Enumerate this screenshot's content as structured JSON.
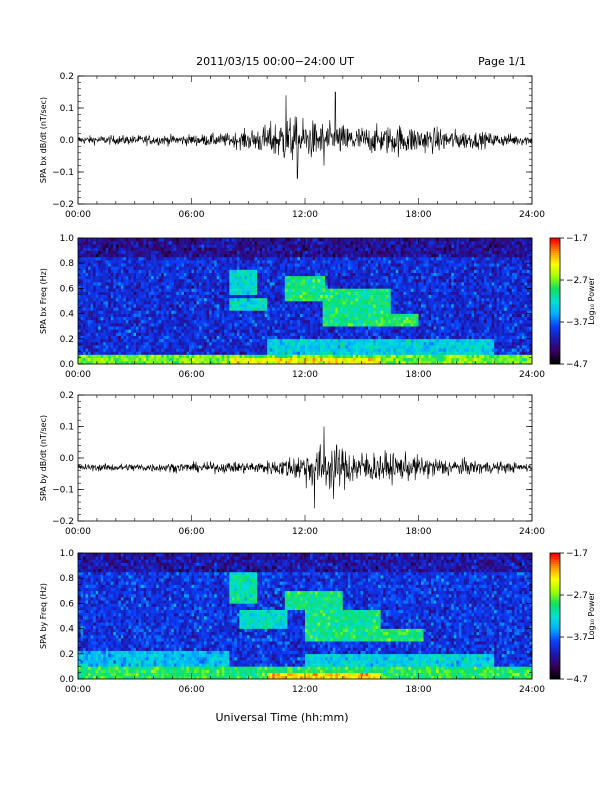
{
  "header": {
    "title": "2011/03/15  00:00−24:00 UT",
    "page": "Page 1/1"
  },
  "footer": {
    "xlabel": "Universal Time (hh:mm)"
  },
  "colorbar": {
    "label": "Log₁₀ Power",
    "ticks": [
      "−1.7",
      "−2.7",
      "−3.7",
      "−4.7"
    ],
    "tick_values": [
      -1.7,
      -2.7,
      -3.7,
      -4.7
    ],
    "range": [
      -4.7,
      -1.7
    ],
    "palette": [
      "#000000",
      "#3a0060",
      "#1a1ab0",
      "#0a40ff",
      "#00b0ff",
      "#00e0d0",
      "#10e060",
      "#a0ff00",
      "#ffff00",
      "#ff9000",
      "#ff0000"
    ]
  },
  "chart_data": [
    {
      "type": "line",
      "ylabel": "SPA bx dB/dt (nT/sec)",
      "x_ticks": [
        "00:00",
        "06:00",
        "12:00",
        "18:00",
        "24:00"
      ],
      "xlim": [
        0,
        24
      ],
      "ylim": [
        -0.2,
        0.2
      ],
      "y_ticks": [
        "0.2",
        "0.1",
        "0.0",
        "−0.1",
        "−0.2"
      ],
      "y_tick_values": [
        0.2,
        0.1,
        0.0,
        -0.1,
        -0.2
      ],
      "baseline": 0.0,
      "envelope": [
        [
          0,
          0.012
        ],
        [
          3,
          0.014
        ],
        [
          6,
          0.016
        ],
        [
          8,
          0.02
        ],
        [
          9,
          0.03
        ],
        [
          10,
          0.045
        ],
        [
          11,
          0.07
        ],
        [
          12,
          0.06
        ],
        [
          13,
          0.05
        ],
        [
          14,
          0.045
        ],
        [
          15,
          0.04
        ],
        [
          16,
          0.04
        ],
        [
          17,
          0.045
        ],
        [
          18,
          0.04
        ],
        [
          20,
          0.03
        ],
        [
          22,
          0.02
        ],
        [
          24,
          0.015
        ]
      ],
      "peaks": [
        [
          11.0,
          0.14
        ],
        [
          11.6,
          -0.12
        ],
        [
          13.6,
          0.15
        ],
        [
          13.0,
          -0.08
        ]
      ],
      "line_color": "#000000"
    },
    {
      "type": "heatmap",
      "ylabel": "SPA bx Freq (Hz)",
      "x_ticks": [
        "00:00",
        "06:00",
        "12:00",
        "18:00",
        "24:00"
      ],
      "xlim": [
        0,
        24
      ],
      "ylim": [
        0.0,
        1.0
      ],
      "y_ticks": [
        "1.0",
        "0.8",
        "0.6",
        "0.4",
        "0.2",
        "0.0"
      ],
      "y_tick_values": [
        1.0,
        0.8,
        0.6,
        0.4,
        0.2,
        0.0
      ],
      "background_log_power": -3.95,
      "features": [
        {
          "t0": 0,
          "t1": 24,
          "f0": 0.0,
          "f1": 0.08,
          "level": -2.7
        },
        {
          "t0": 8,
          "t1": 16,
          "f0": 0.0,
          "f1": 0.05,
          "level": -2.3
        },
        {
          "t0": 8,
          "t1": 9.5,
          "f0": 0.55,
          "f1": 0.75,
          "level": -3.2
        },
        {
          "t0": 8,
          "t1": 10,
          "f0": 0.42,
          "f1": 0.52,
          "level": -3.2
        },
        {
          "t0": 11,
          "t1": 13,
          "f0": 0.5,
          "f1": 0.7,
          "level": -3.0
        },
        {
          "t0": 13,
          "t1": 16.5,
          "f0": 0.3,
          "f1": 0.6,
          "level": -3.0
        },
        {
          "t0": 16,
          "t1": 18,
          "f0": 0.3,
          "f1": 0.4,
          "level": -2.9
        },
        {
          "t0": 10,
          "t1": 22,
          "f0": 0.05,
          "f1": 0.2,
          "level": -3.3
        }
      ]
    },
    {
      "type": "line",
      "ylabel": "SPA by dB/dt (nT/sec)",
      "x_ticks": [
        "00:00",
        "06:00",
        "12:00",
        "18:00",
        "24:00"
      ],
      "xlim": [
        0,
        24
      ],
      "ylim": [
        -0.2,
        0.2
      ],
      "y_ticks": [
        "0.2",
        "0.1",
        "0.0",
        "−0.1",
        "−0.2"
      ],
      "y_tick_values": [
        0.2,
        0.1,
        0.0,
        -0.1,
        -0.2
      ],
      "baseline": -0.03,
      "envelope": [
        [
          0,
          0.01
        ],
        [
          3,
          0.012
        ],
        [
          6,
          0.014
        ],
        [
          8,
          0.016
        ],
        [
          10,
          0.02
        ],
        [
          11,
          0.03
        ],
        [
          12,
          0.05
        ],
        [
          13,
          0.07
        ],
        [
          14,
          0.06
        ],
        [
          15,
          0.05
        ],
        [
          16,
          0.045
        ],
        [
          17,
          0.04
        ],
        [
          18,
          0.035
        ],
        [
          20,
          0.025
        ],
        [
          22,
          0.018
        ],
        [
          24,
          0.012
        ]
      ],
      "peaks": [
        [
          13.0,
          0.13
        ],
        [
          12.5,
          -0.13
        ],
        [
          13.5,
          -0.1
        ]
      ],
      "line_color": "#000000"
    },
    {
      "type": "heatmap",
      "ylabel": "SPA by Freq (Hz)",
      "x_ticks": [
        "00:00",
        "06:00",
        "12:00",
        "18:00",
        "24:00"
      ],
      "xlim": [
        0,
        24
      ],
      "ylim": [
        0.0,
        1.0
      ],
      "y_ticks": [
        "1.0",
        "0.8",
        "0.6",
        "0.4",
        "0.2",
        "0.0"
      ],
      "y_tick_values": [
        1.0,
        0.8,
        0.6,
        0.4,
        0.2,
        0.0
      ],
      "background_log_power": -3.9,
      "features": [
        {
          "t0": 0,
          "t1": 24,
          "f0": 0.0,
          "f1": 0.1,
          "level": -2.9
        },
        {
          "t0": 0,
          "t1": 8,
          "f0": 0.1,
          "f1": 0.22,
          "level": -3.4
        },
        {
          "t0": 10,
          "t1": 16,
          "f0": 0.0,
          "f1": 0.05,
          "level": -2.2
        },
        {
          "t0": 8,
          "t1": 9.5,
          "f0": 0.6,
          "f1": 0.85,
          "level": -3.1
        },
        {
          "t0": 8.5,
          "t1": 11,
          "f0": 0.4,
          "f1": 0.55,
          "level": -3.2
        },
        {
          "t0": 11,
          "t1": 14,
          "f0": 0.55,
          "f1": 0.7,
          "level": -3.0
        },
        {
          "t0": 12,
          "t1": 16,
          "f0": 0.3,
          "f1": 0.55,
          "level": -3.0
        },
        {
          "t0": 16,
          "t1": 18.2,
          "f0": 0.3,
          "f1": 0.4,
          "level": -2.9
        },
        {
          "t0": 12,
          "t1": 22,
          "f0": 0.1,
          "f1": 0.2,
          "level": -3.3
        }
      ]
    }
  ]
}
